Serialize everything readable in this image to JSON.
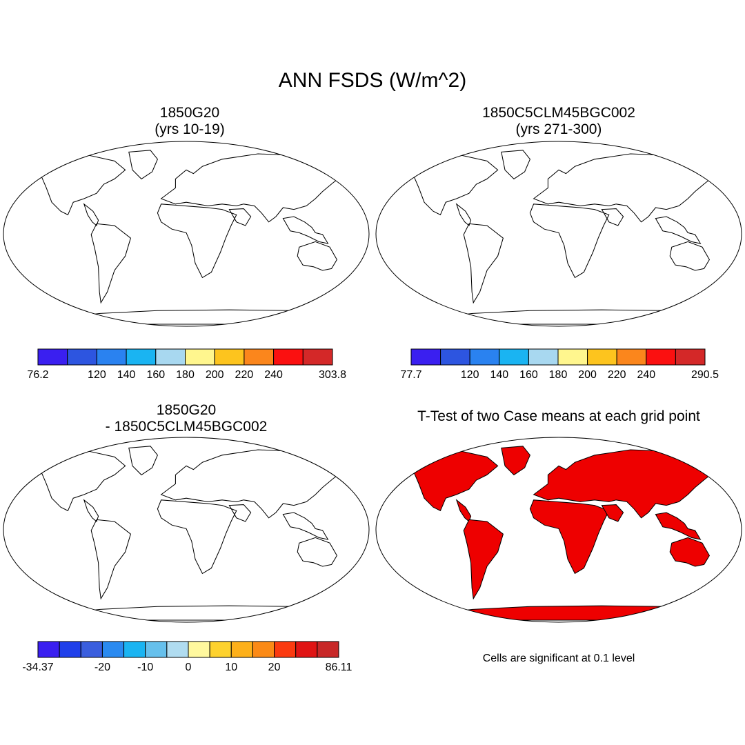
{
  "title": "ANN FSDS (W/m^2)",
  "panels": [
    {
      "id": "case1",
      "title_line1": "1850G20",
      "title_line2": "(yrs 10-19)",
      "colorbar": {
        "colors": [
          "#3a1ff0",
          "#2d55e0",
          "#2a82f0",
          "#1ab4f2",
          "#a8d8f0",
          "#fff68e",
          "#fdc41e",
          "#fb861c",
          "#fb1010",
          "#d42828"
        ],
        "labels": [
          "76.2",
          "120",
          "140",
          "160",
          "180",
          "200",
          "220",
          "240",
          "303.8"
        ]
      }
    },
    {
      "id": "case2",
      "title_line1": "1850C5CLM45BGC002",
      "title_line2": "(yrs 271-300)",
      "colorbar": {
        "colors": [
          "#3a1ff0",
          "#2d55e0",
          "#2a82f0",
          "#1ab4f2",
          "#a8d8f0",
          "#fff68e",
          "#fdc41e",
          "#fb861c",
          "#fb1010",
          "#d42828"
        ],
        "labels": [
          "77.7",
          "120",
          "140",
          "160",
          "180",
          "200",
          "220",
          "240",
          "290.5"
        ]
      }
    },
    {
      "id": "diff",
      "title_line1": "1850G20",
      "title_line2": "- 1850C5CLM45BGC002",
      "colorbar": {
        "colors": [
          "#3a1ff0",
          "#1f3fea",
          "#3a5ede",
          "#2a8af0",
          "#1ab4f2",
          "#66c0ec",
          "#b0dcf0",
          "#fff89e",
          "#fed22e",
          "#fdb01a",
          "#fb8a16",
          "#fb3a10",
          "#e01414",
          "#c82828"
        ],
        "labels": [
          "-34.37",
          "-20",
          "-10",
          "0",
          "10",
          "20",
          "86.11"
        ]
      }
    },
    {
      "id": "ttest",
      "title": "T-Test of two Case means at each grid point",
      "note": "Cells are significant at 0.1 level",
      "fill_color": "#ee0000"
    }
  ]
}
